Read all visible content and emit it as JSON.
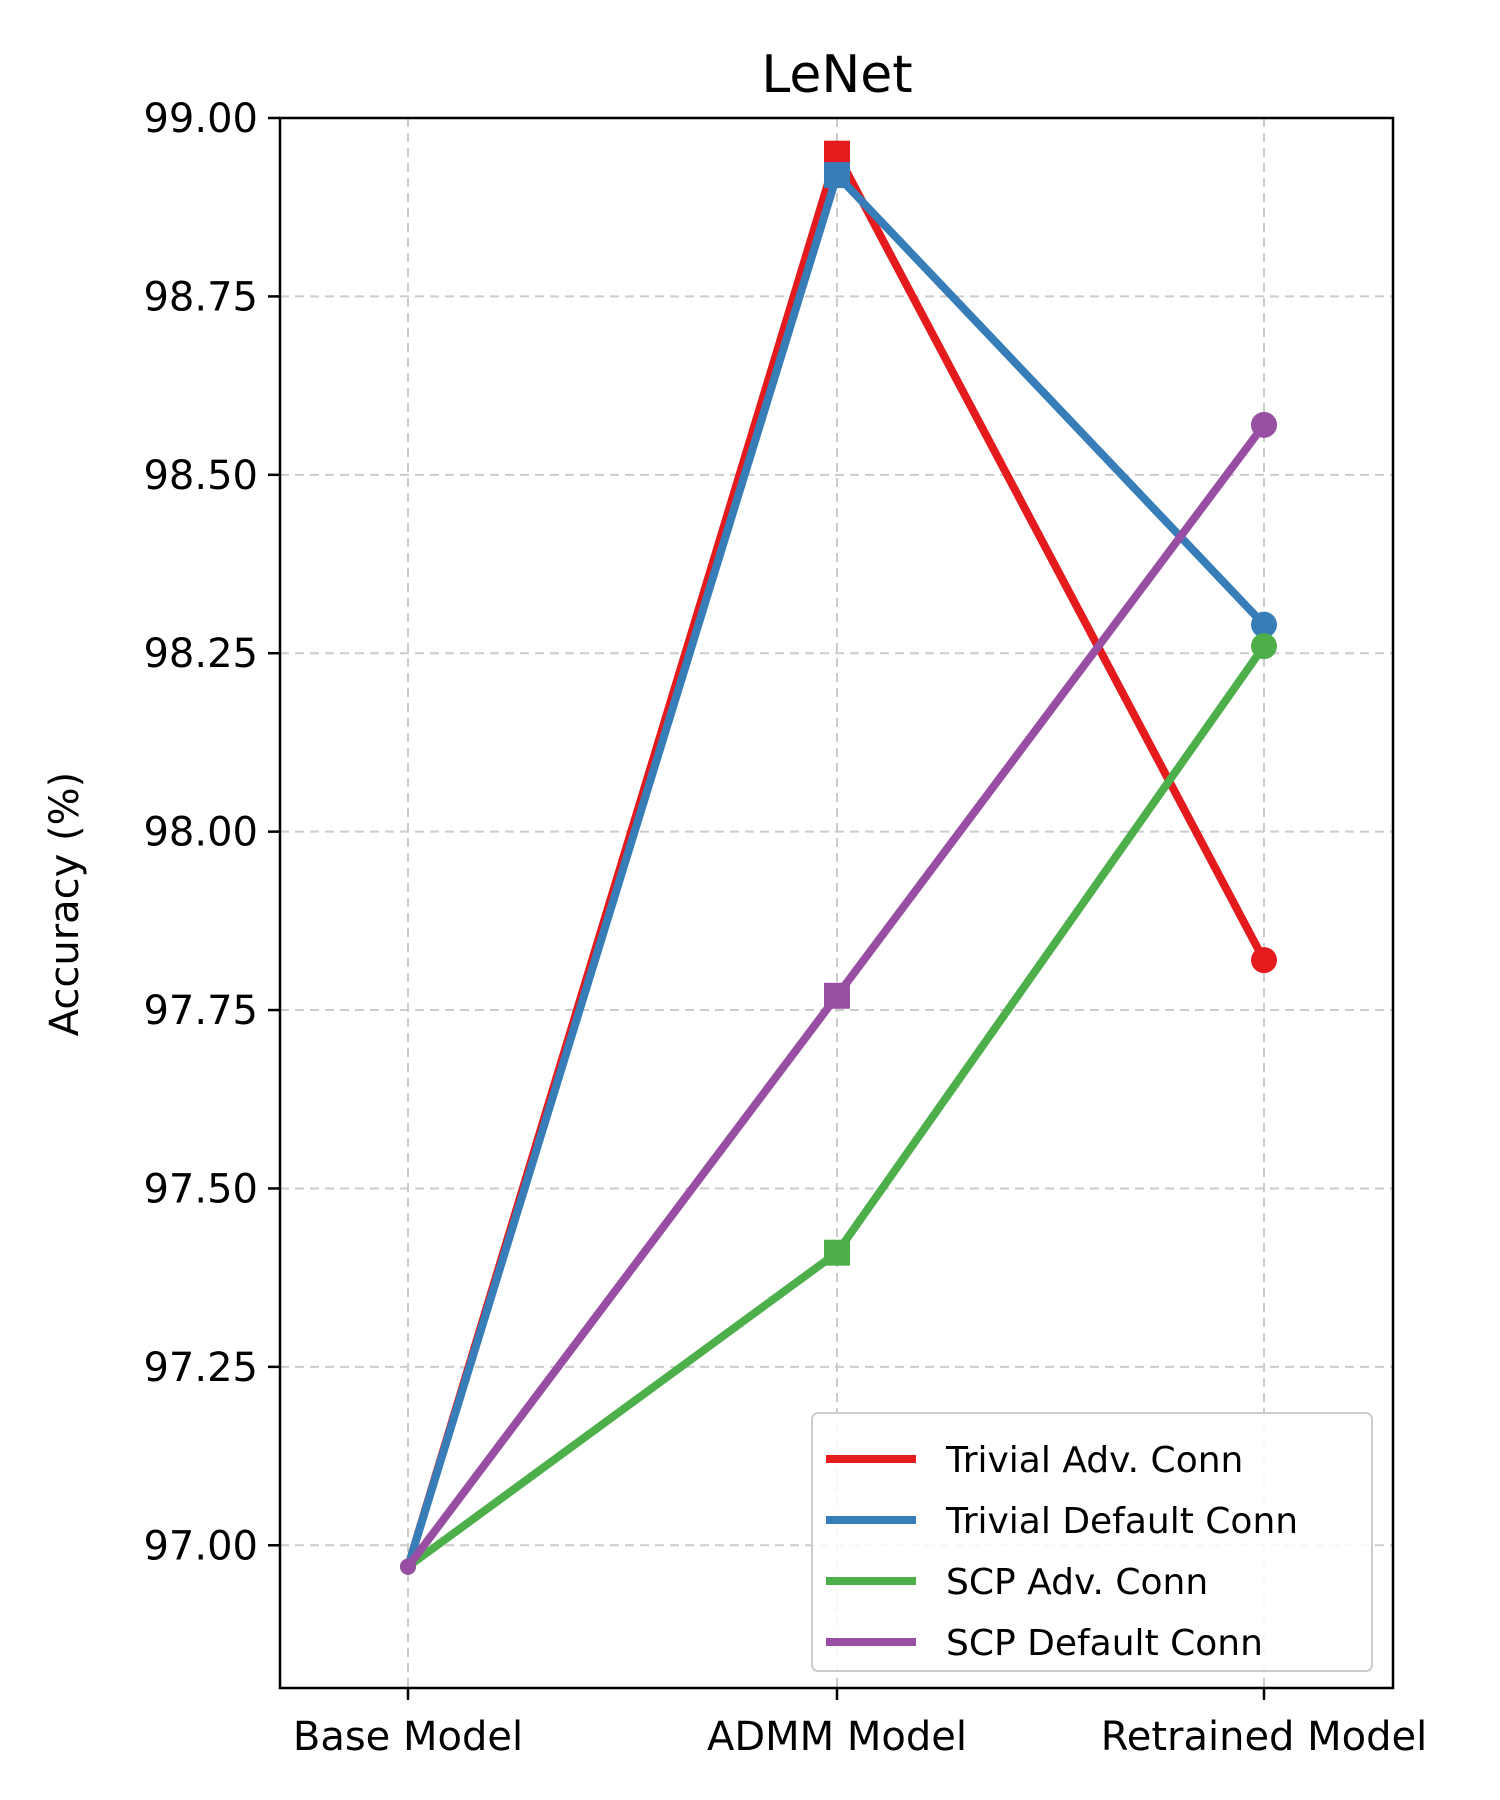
{
  "chart_data": {
    "type": "line",
    "title": "LeNet",
    "xlabel": "",
    "ylabel": "Accuracy (%)",
    "categories": [
      "Base Model",
      "ADMM Model",
      "Retrained Model"
    ],
    "ylim": [
      96.8,
      99.0
    ],
    "yticks": [
      "97.00",
      "97.25",
      "97.50",
      "97.75",
      "98.00",
      "98.25",
      "98.50",
      "98.75",
      "99.00"
    ],
    "grid": true,
    "legend_position": "lower-right",
    "series": [
      {
        "name": "Trivial Adv. Conn",
        "color": "#e41a1c",
        "values": [
          96.97,
          98.95,
          97.82
        ]
      },
      {
        "name": "Trivial Default Conn",
        "color": "#377eb8",
        "values": [
          96.97,
          98.92,
          98.29
        ]
      },
      {
        "name": "SCP Adv. Conn",
        "color": "#4daf4a",
        "values": [
          96.97,
          97.41,
          98.26
        ]
      },
      {
        "name": "SCP Default Conn",
        "color": "#984ea3",
        "values": [
          96.97,
          97.77,
          98.57
        ]
      }
    ],
    "markers": [
      "circle",
      "square",
      "circle"
    ]
  }
}
